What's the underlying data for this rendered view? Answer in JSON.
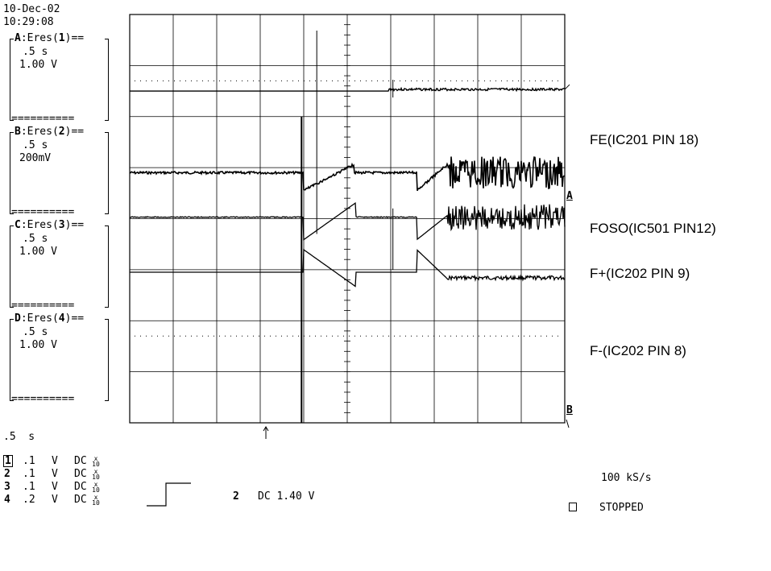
{
  "header": {
    "date": "10-Dec-02",
    "time": "10:29:08"
  },
  "panels": [
    {
      "label": "A",
      "num": "1",
      "title_prefix": ":Eres(",
      "title_suffix": ")==",
      "timebase": ".5 s",
      "volts": "1.00 V",
      "footer": "=========="
    },
    {
      "label": "B",
      "num": "2",
      "title_prefix": ":Eres(",
      "title_suffix": ")==",
      "timebase": ".5 s",
      "volts": "200mV",
      "footer": "=========="
    },
    {
      "label": "C",
      "num": "3",
      "title_prefix": ":Eres(",
      "title_suffix": ")==",
      "timebase": ".5 s",
      "volts": "1.00 V",
      "footer": "=========="
    },
    {
      "label": "D",
      "num": "4",
      "title_prefix": ":Eres(",
      "title_suffix": ")==",
      "timebase": ".5 s",
      "volts": "1.00 V",
      "footer": "=========="
    }
  ],
  "bottom": {
    "timebase": ".5  s",
    "channels": [
      {
        "num": "1",
        "volts": ".1",
        "unit": "V",
        "coupling": "DC",
        "probe": "x 10"
      },
      {
        "num": "2",
        "volts": ".1",
        "unit": "V",
        "coupling": "DC",
        "probe": "x 10"
      },
      {
        "num": "3",
        "volts": ".1",
        "unit": "V",
        "coupling": "DC",
        "probe": "x 10"
      },
      {
        "num": "4",
        "volts": ".2",
        "unit": "V",
        "coupling": "DC",
        "probe": "x 10"
      }
    ],
    "trigger_channel": "2",
    "trigger_level": "DC 1.40 V",
    "sample_rate": "100 kS/s",
    "status": "STOPPED"
  },
  "grid_markers": {
    "top": "A",
    "bottom": "B"
  },
  "chart_data": {
    "type": "line",
    "grid": true,
    "divisions": {
      "x": 10,
      "y": 8
    },
    "series": [
      {
        "name": "FE(IC201 PIN 18)",
        "baseline_div": 1.5,
        "events": [
          "small step up near 6.2 div followed by low-amplitude ripple"
        ]
      },
      {
        "name": "FOSO(IC501 PIN12)",
        "baseline_div": 3.1,
        "events": [
          "negative pulse + ramp at 4.0–5.3 div",
          "negative pulse + ramp at 6.6–7.3 div",
          "large oscillation from 7.3 div to end"
        ]
      },
      {
        "name": "F+(IC202 PIN 9)",
        "baseline_div": 3.97,
        "events": [
          "negative dip + ramp at 4.0–5.3 div",
          "negative dip + ramp at 6.6–7.3 div",
          "large oscillation from 7.3 div to end"
        ]
      },
      {
        "name": "F-(IC202 PIN 8)",
        "baseline_div": 5.05,
        "events": [
          "positive pulse + ramp at 4.0–5.3 div",
          "positive pulse + ramp at 6.6–7.3 div",
          "ripple from 7.3 div to end"
        ]
      }
    ],
    "trigger_position_div": 3.13
  }
}
